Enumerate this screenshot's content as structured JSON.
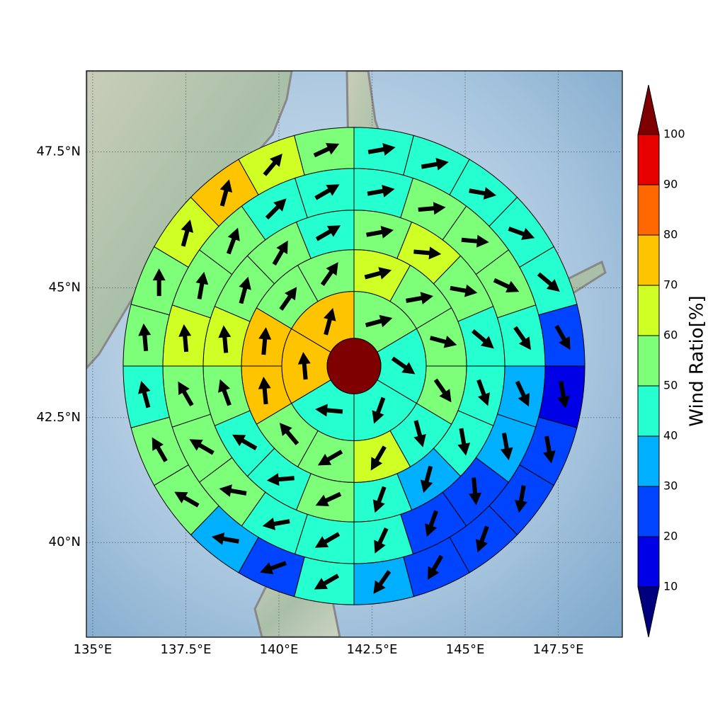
{
  "chart_data": {
    "type": "polar",
    "projection": "mercator",
    "xlim": [
      134.83,
      149.22
    ],
    "ylim": [
      38.04,
      48.94
    ],
    "xticks": [
      {
        "value": 135,
        "label": "135°E"
      },
      {
        "value": 137.5,
        "label": "137.5°E"
      },
      {
        "value": 140,
        "label": "140°E"
      },
      {
        "value": 142.5,
        "label": "142.5°E"
      },
      {
        "value": 145,
        "label": "145°E"
      },
      {
        "value": 147.5,
        "label": "147.5°E"
      }
    ],
    "yticks": [
      {
        "value": 40,
        "label": "40°N"
      },
      {
        "value": 42.5,
        "label": "42.5°N"
      },
      {
        "value": 45,
        "label": "45°N"
      },
      {
        "value": 47.5,
        "label": "47.5°N"
      }
    ],
    "grid": true,
    "arrow_color": "#000000",
    "edge_color": "#000000",
    "colorbar": {
      "label": "Wind Ratio[%]",
      "ticks": [
        10,
        20,
        30,
        40,
        50,
        60,
        70,
        80,
        90,
        100
      ],
      "colors": [
        "#00007f",
        "#0000e6",
        "#0044ff",
        "#00b0ff",
        "#26ffd0",
        "#7dff7a",
        "#d0ff26",
        "#ffc400",
        "#ff6800",
        "#e60000",
        "#7f0000"
      ],
      "extend": "both"
    },
    "rings": [
      {
        "values": [
          55,
          45,
          45,
          45,
          75,
          75
        ],
        "directions": [
          75,
          125,
          200,
          275,
          355,
          15
        ]
      },
      {
        "values": [
          65,
          55,
          55,
          55,
          45,
          65,
          55,
          55,
          75,
          75,
          55,
          55
        ],
        "directions": [
          75,
          80,
          105,
          145,
          165,
          210,
          240,
          320,
          355,
          5,
          35,
          35
        ]
      },
      {
        "values": [
          55,
          65,
          55,
          45,
          45,
          45,
          35,
          45,
          55,
          45,
          45,
          55,
          65,
          55,
          55,
          45
        ],
        "directions": [
          80,
          95,
          100,
          130,
          160,
          170,
          195,
          200,
          245,
          265,
          300,
          340,
          355,
          15,
          30,
          60
        ]
      },
      {
        "values": [
          45,
          55,
          55,
          55,
          45,
          35,
          35,
          25,
          25,
          45,
          45,
          45,
          55,
          55,
          55,
          65,
          55,
          55,
          45,
          45
        ],
        "directions": [
          80,
          85,
          95,
          115,
          145,
          155,
          170,
          175,
          200,
          205,
          240,
          260,
          280,
          300,
          330,
          355,
          10,
          20,
          45,
          60
        ]
      },
      {
        "values": [
          45,
          45,
          45,
          45,
          45,
          25,
          15,
          25,
          25,
          25,
          25,
          35,
          45,
          25,
          35,
          55,
          55,
          45,
          55,
          55,
          65,
          75,
          65,
          55
        ],
        "directions": [
          80,
          80,
          100,
          110,
          130,
          150,
          170,
          170,
          190,
          200,
          210,
          215,
          240,
          250,
          280,
          300,
          330,
          345,
          355,
          0,
          15,
          15,
          40,
          65
        ]
      }
    ]
  }
}
